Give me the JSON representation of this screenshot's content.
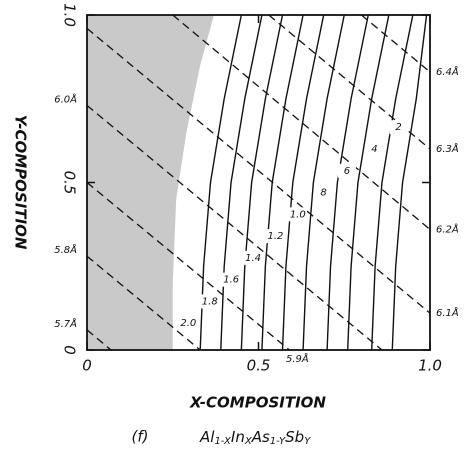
{
  "chart_data": {
    "type": "contour",
    "xlabel": "X-COMPOSITION",
    "ylabel": "Y-COMPOSITION",
    "xlim": [
      0,
      1
    ],
    "ylim": [
      0,
      1
    ],
    "xticks": [
      0,
      0.5,
      {
        "value": 1,
        "label": "1.0"
      }
    ],
    "yticks": [
      0,
      0.5,
      {
        "value": 1,
        "label": "1.0"
      }
    ],
    "shaded_region": {
      "color": "#c9c9c9",
      "x": [
        0,
        0.37,
        0.33,
        0.29,
        0.26,
        0.25,
        0.25,
        0
      ],
      "y": [
        1,
        1,
        0.85,
        0.65,
        0.45,
        0.2,
        0,
        0
      ]
    },
    "series": [
      {
        "name": "2.0",
        "color": "#111111",
        "x": [
          0.33,
          0.34,
          0.36,
          0.4,
          0.45
        ],
        "y": [
          0,
          0.25,
          0.5,
          0.75,
          1
        ]
      },
      {
        "name": "1.8",
        "color": "#111111",
        "x": [
          0.39,
          0.4,
          0.42,
          0.46,
          0.51
        ],
        "y": [
          0,
          0.25,
          0.5,
          0.75,
          1
        ]
      },
      {
        "name": "1.6",
        "color": "#111111",
        "x": [
          0.45,
          0.46,
          0.48,
          0.52,
          0.57
        ],
        "y": [
          0,
          0.25,
          0.5,
          0.75,
          1
        ]
      },
      {
        "name": "1.4",
        "color": "#111111",
        "x": [
          0.51,
          0.52,
          0.54,
          0.58,
          0.63
        ],
        "y": [
          0,
          0.25,
          0.5,
          0.75,
          1
        ]
      },
      {
        "name": "1.2",
        "color": "#111111",
        "x": [
          0.57,
          0.58,
          0.6,
          0.64,
          0.69
        ],
        "y": [
          0,
          0.25,
          0.5,
          0.75,
          1
        ]
      },
      {
        "name": "1.0",
        "color": "#111111",
        "x": [
          0.63,
          0.64,
          0.66,
          0.7,
          0.75
        ],
        "y": [
          0,
          0.25,
          0.5,
          0.75,
          1
        ]
      },
      {
        "name": "8",
        "color": "#111111",
        "x": [
          0.7,
          0.71,
          0.73,
          0.77,
          0.82
        ],
        "y": [
          0,
          0.25,
          0.5,
          0.75,
          1
        ]
      },
      {
        "name": "6",
        "color": "#111111",
        "x": [
          0.76,
          0.77,
          0.79,
          0.83,
          0.88
        ],
        "y": [
          0,
          0.25,
          0.5,
          0.75,
          1
        ]
      },
      {
        "name": "4",
        "color": "#111111",
        "x": [
          0.83,
          0.84,
          0.86,
          0.9,
          0.95
        ],
        "y": [
          0,
          0.25,
          0.5,
          0.75,
          1
        ]
      },
      {
        "name": "2",
        "color": "#111111",
        "x": [
          0.89,
          0.9,
          0.92,
          0.96,
          0.99
        ],
        "y": [
          0,
          0.25,
          0.5,
          0.75,
          1
        ]
      }
    ],
    "lattice_lines": [
      {
        "name": "5.7Å",
        "label_side": "left",
        "x": [
          0,
          0.07
        ],
        "y": [
          0.06,
          0
        ]
      },
      {
        "name": "5.8Å",
        "label_side": "left",
        "x": [
          0,
          0.33
        ],
        "y": [
          0.28,
          0
        ]
      },
      {
        "name": "5.9Å",
        "label_side": "bottom",
        "x": [
          0,
          0.59
        ],
        "y": [
          0.5,
          0
        ]
      },
      {
        "name": "6.0Å",
        "label_side": "left",
        "x": [
          0,
          0.86
        ],
        "y": [
          0.73,
          0
        ]
      },
      {
        "name": "6.1Å",
        "label_side": "right",
        "x": [
          0,
          1
        ],
        "y": [
          0.96,
          0.11
        ]
      },
      {
        "name": "6.2Å",
        "label_side": "right",
        "x": [
          0.25,
          1
        ],
        "y": [
          1,
          0.36
        ]
      },
      {
        "name": "6.3Å",
        "label_side": "right",
        "x": [
          0.53,
          1
        ],
        "y": [
          1,
          0.6
        ]
      },
      {
        "name": "6.4Å",
        "label_side": "right",
        "x": [
          0.8,
          1
        ],
        "y": [
          1,
          0.83
        ]
      }
    ],
    "caption": {
      "label": "(f)",
      "formula": [
        "Al",
        "1-X",
        "In",
        "X",
        "As",
        "1-Y",
        "Sb",
        "Y"
      ]
    }
  }
}
